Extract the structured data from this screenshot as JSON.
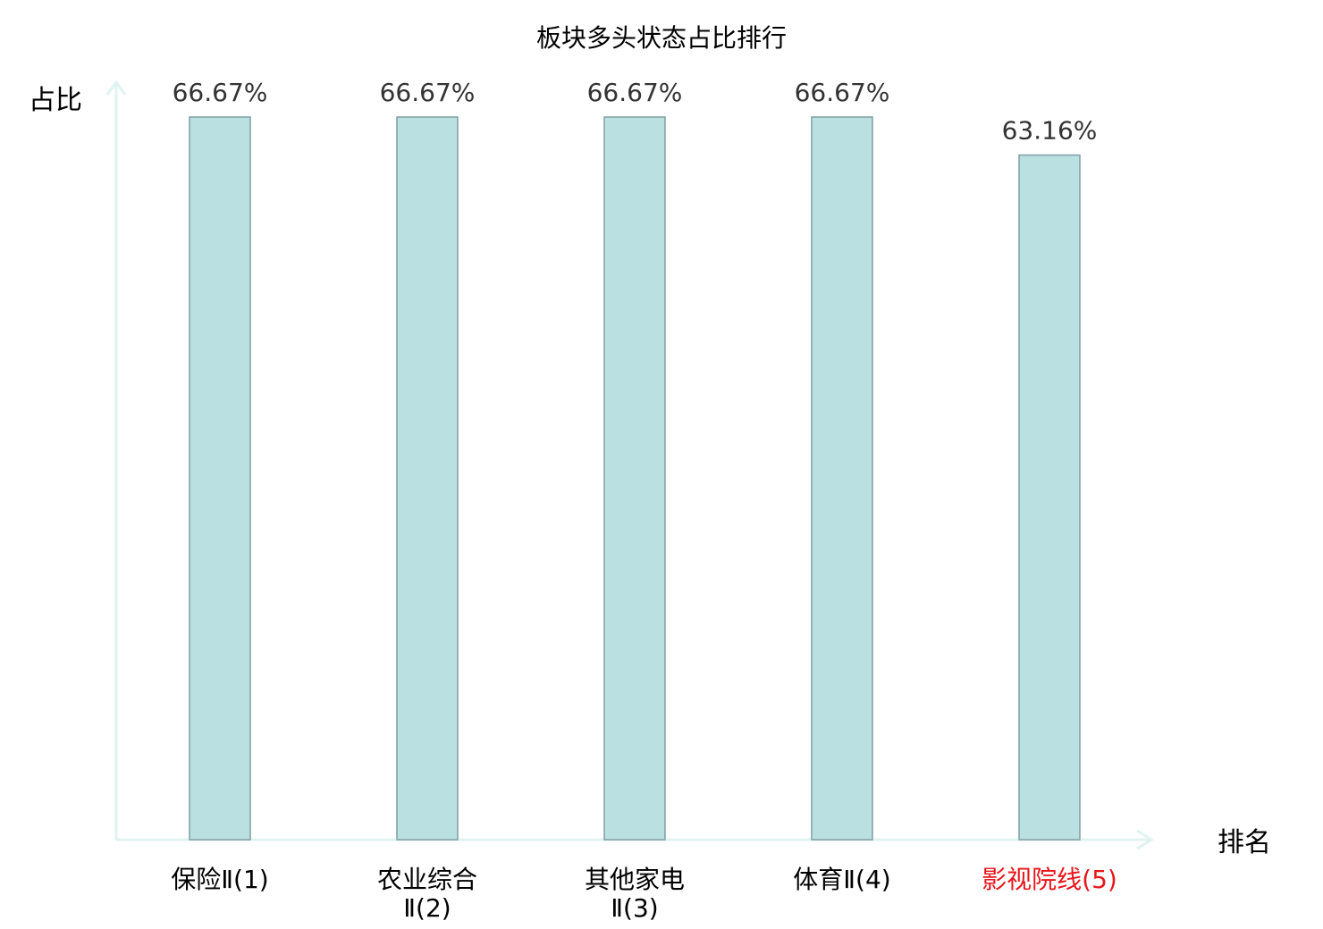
{
  "chart_data": {
    "type": "bar",
    "title": "板块多头状态占比排行",
    "ylabel": "占比",
    "xlabel": "排名",
    "categories": [
      {
        "line1": "保险Ⅱ(1)",
        "line2": "",
        "highlight": false
      },
      {
        "line1": "农业综合",
        "line2": "Ⅱ(2)",
        "highlight": false
      },
      {
        "line1": "其他家电",
        "line2": "Ⅱ(3)",
        "highlight": false
      },
      {
        "line1": "体育Ⅱ(4)",
        "line2": "",
        "highlight": false
      },
      {
        "line1": "影视院线(5)",
        "line2": "",
        "highlight": true
      }
    ],
    "values": [
      66.67,
      66.67,
      66.67,
      66.67,
      63.16
    ],
    "value_labels": [
      "66.67%",
      "66.67%",
      "66.67%",
      "66.67%",
      "63.16%"
    ],
    "ylim": [
      0,
      66.67
    ],
    "grid": false,
    "colors": {
      "bar_fill": "#bbe0e2",
      "bar_stroke": "#7f9fa1",
      "axis": "#e0f3f1",
      "text": "#000000",
      "value_text": "#333333",
      "highlight_text": "#e8161b"
    }
  }
}
